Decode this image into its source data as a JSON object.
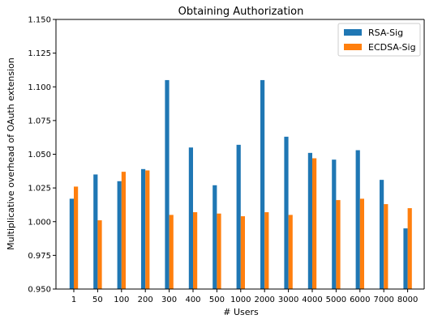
{
  "chart_data": {
    "type": "bar",
    "title": "Obtaining Authorization",
    "xlabel": "# Users",
    "ylabel": "Multiplicative overhead of OAuth extension",
    "ylim": [
      0.95,
      1.15
    ],
    "yticks": [
      "0.950",
      "0.975",
      "1.000",
      "1.025",
      "1.050",
      "1.075",
      "1.100",
      "1.125",
      "1.150"
    ],
    "categories": [
      "1",
      "50",
      "100",
      "200",
      "300",
      "400",
      "500",
      "1000",
      "2000",
      "3000",
      "4000",
      "5000",
      "6000",
      "7000",
      "8000"
    ],
    "series": [
      {
        "name": "RSA-Sig",
        "color": "#1f77b4",
        "values": [
          1.017,
          1.035,
          1.03,
          1.039,
          1.105,
          1.055,
          1.027,
          1.057,
          1.105,
          1.063,
          1.051,
          1.046,
          1.053,
          1.031,
          0.995
        ]
      },
      {
        "name": "ECDSA-Sig",
        "color": "#ff7f0e",
        "values": [
          1.026,
          1.001,
          1.037,
          1.038,
          1.005,
          1.007,
          1.006,
          1.004,
          1.007,
          1.005,
          1.047,
          1.016,
          1.017,
          1.013,
          1.01
        ]
      }
    ],
    "legend_position": "top-right",
    "grid": false
  }
}
